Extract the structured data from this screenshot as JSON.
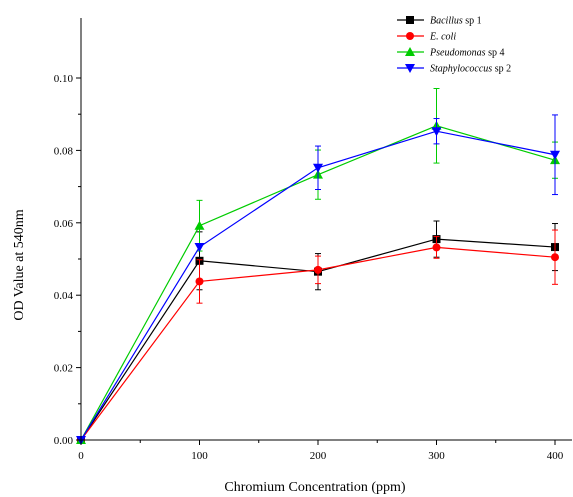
{
  "chart_data": {
    "type": "line",
    "title": "",
    "xlabel": "Chromium Concentration (ppm)",
    "ylabel": "OD Value at 540nm",
    "xlim": [
      0,
      420
    ],
    "ylim": [
      0,
      0.11
    ],
    "x_ticks": [
      0,
      100,
      200,
      300,
      400
    ],
    "x_tick_labels": [
      "0",
      "100",
      "200",
      "300",
      "400"
    ],
    "y_ticks": [
      0.0,
      0.02,
      0.04,
      0.06,
      0.08,
      0.1
    ],
    "y_tick_labels": [
      "0.00",
      "0.02",
      "0.04",
      "0.06",
      "0.08",
      "0.10"
    ],
    "grid": false,
    "legend_position": "top-right",
    "x": [
      0,
      100,
      200,
      300,
      400
    ],
    "series": [
      {
        "name": "Bacillus sp 1",
        "name_italic": "Bacillus",
        "name_suffix": " sp 1",
        "color": "#000000",
        "marker": "square",
        "values": [
          0.0,
          0.0495,
          0.0465,
          0.0555,
          0.0533
        ],
        "errors": [
          0.0,
          0.008,
          0.005,
          0.005,
          0.0065
        ]
      },
      {
        "name": "E. coli",
        "name_italic": "E. coli",
        "name_suffix": "",
        "color": "#ff0000",
        "marker": "circle",
        "values": [
          0.0,
          0.0438,
          0.047,
          0.0532,
          0.0505
        ],
        "errors": [
          0.0,
          0.006,
          0.0038,
          0.003,
          0.0075
        ]
      },
      {
        "name": "Pseudomonas sp 4",
        "name_italic": "Pseudomonas",
        "name_suffix": " sp 4",
        "color": "#00cc00",
        "marker": "triangle-up",
        "values": [
          0.0,
          0.0592,
          0.0733,
          0.0868,
          0.0773
        ],
        "errors": [
          0.0,
          0.007,
          0.0068,
          0.0103,
          0.005
        ]
      },
      {
        "name": "Staphylococcus sp 2",
        "name_italic": "Staphylococcus",
        "name_suffix": " sp 2",
        "color": "#0000ff",
        "marker": "triangle-down",
        "values": [
          0.0,
          0.0533,
          0.0752,
          0.0853,
          0.0788
        ],
        "errors": [
          0.0,
          0.0,
          0.006,
          0.0035,
          0.011
        ]
      }
    ]
  }
}
